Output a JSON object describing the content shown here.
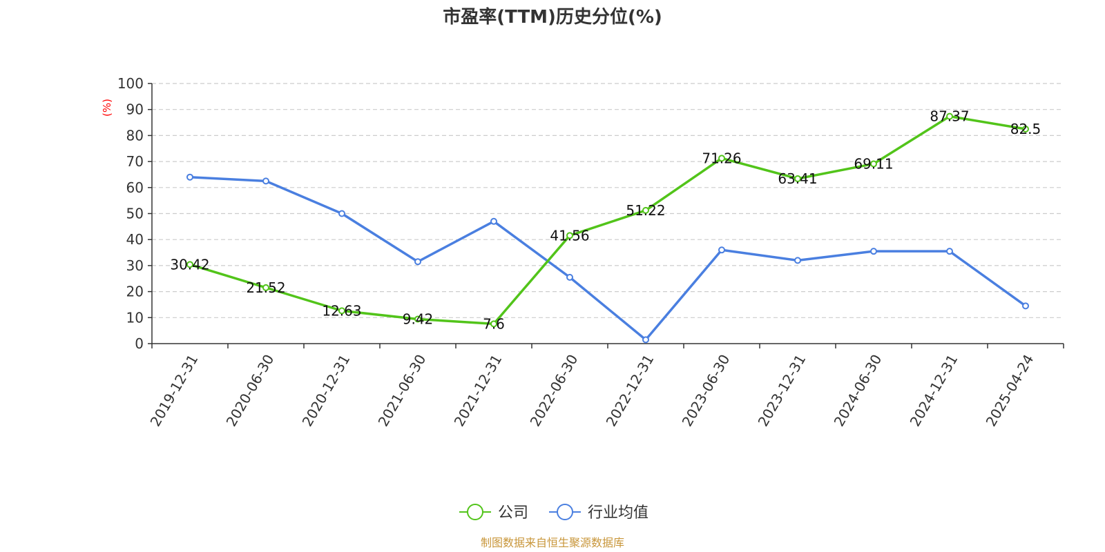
{
  "chart_data": {
    "type": "line",
    "title": "市盈率(TTM)历史分位(%)",
    "ylabel": "(%)",
    "ylim": [
      0,
      100
    ],
    "yticks": [
      0,
      10,
      20,
      30,
      40,
      50,
      60,
      70,
      80,
      90,
      100
    ],
    "grid": true,
    "legend_position": "bottom",
    "categories": [
      "2019-12-31",
      "2020-06-30",
      "2020-12-31",
      "2021-06-30",
      "2021-12-31",
      "2022-06-30",
      "2022-12-31",
      "2023-06-30",
      "2023-12-31",
      "2024-06-30",
      "2024-12-31",
      "2025-04-24"
    ],
    "series": [
      {
        "name": "公司",
        "color": "#52c41a",
        "show_labels": true,
        "values": [
          30.42,
          21.52,
          12.63,
          9.42,
          7.6,
          41.56,
          51.22,
          71.26,
          63.41,
          69.11,
          87.37,
          82.5
        ]
      },
      {
        "name": "行业均值",
        "color": "#4a7fe0",
        "show_labels": false,
        "values": [
          64,
          62.5,
          50,
          31.5,
          47,
          25.5,
          1.5,
          36,
          32,
          35.5,
          35.5,
          14.5
        ]
      }
    ],
    "source": "制图数据来自恒生聚源数据库"
  },
  "colors": {
    "ylabel": "#ff0000",
    "source": "#c8963a",
    "axis": "#333333",
    "grid": "#cccccc"
  }
}
